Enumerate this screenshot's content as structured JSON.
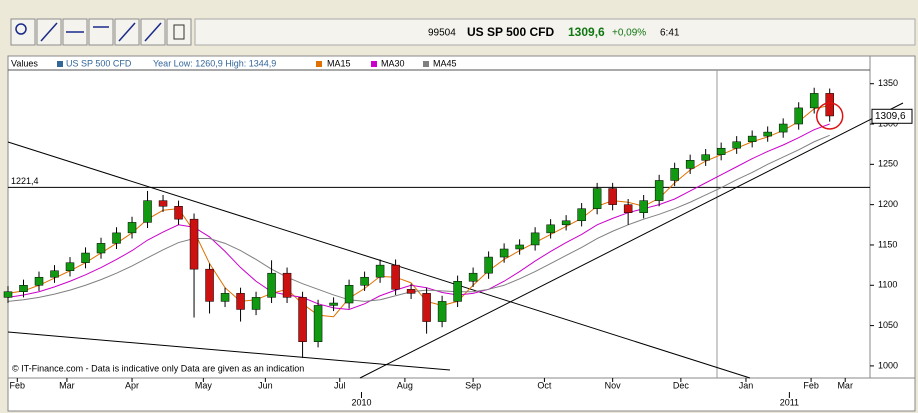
{
  "header": {
    "code": "99504",
    "name": "US SP 500 CFD",
    "price": "1309,6",
    "change": "+0,09%",
    "time": "6:41"
  },
  "chart_data": {
    "type": "candlestick",
    "legend_title": "Values",
    "year_range": "Year Low: 1260,9 High: 1344,9",
    "footer": "© IT-Finance.com - Data is indicative only Data are given as an indication",
    "x": [
      0,
      5,
      10,
      15,
      20,
      25,
      30,
      35,
      40,
      45,
      50,
      55,
      60,
      65,
      70,
      75,
      80,
      85,
      90,
      95,
      100,
      105,
      110,
      115,
      120,
      125,
      130,
      135,
      140,
      145,
      150,
      155,
      160,
      165,
      170,
      175,
      180,
      185,
      190,
      195,
      200,
      205,
      210,
      215,
      220,
      225,
      230,
      235,
      240,
      245,
      250,
      255,
      260,
      265
    ],
    "up_color": "#119911",
    "down_color": "#cc1111",
    "series": [
      {
        "name": "US SP 500 CFD",
        "color": "#336699",
        "open": [
          1085,
          1092,
          1100,
          1110,
          1118,
          1128,
          1140,
          1152,
          1165,
          1178,
          1205,
          1198,
          1182,
          1120,
          1080,
          1090,
          1070,
          1085,
          1115,
          1085,
          1030,
          1075,
          1078,
          1100,
          1110,
          1125,
          1095,
          1090,
          1055,
          1080,
          1105,
          1115,
          1135,
          1145,
          1150,
          1165,
          1175,
          1180,
          1195,
          1220,
          1200,
          1190,
          1205,
          1230,
          1245,
          1255,
          1262,
          1270,
          1278,
          1285,
          1290,
          1300,
          1320,
          1338
        ],
        "high": [
          1099,
          1107,
          1117,
          1125,
          1135,
          1147,
          1159,
          1172,
          1185,
          1217,
          1212,
          1205,
          1189,
          1127,
          1097,
          1097,
          1092,
          1131,
          1122,
          1092,
          1082,
          1085,
          1107,
          1117,
          1132,
          1132,
          1102,
          1097,
          1087,
          1112,
          1122,
          1142,
          1152,
          1157,
          1172,
          1182,
          1187,
          1202,
          1227,
          1227,
          1207,
          1212,
          1237,
          1252,
          1262,
          1269,
          1277,
          1285,
          1292,
          1297,
          1307,
          1327,
          1345,
          1344
        ],
        "low": [
          1078,
          1085,
          1093,
          1103,
          1111,
          1121,
          1133,
          1145,
          1158,
          1171,
          1191,
          1175,
          1060,
          1065,
          1073,
          1055,
          1063,
          1078,
          1078,
          1010,
          1023,
          1068,
          1071,
          1093,
          1103,
          1088,
          1083,
          1040,
          1048,
          1073,
          1098,
          1108,
          1128,
          1138,
          1143,
          1158,
          1168,
          1173,
          1188,
          1193,
          1175,
          1183,
          1198,
          1223,
          1238,
          1248,
          1255,
          1263,
          1271,
          1278,
          1283,
          1293,
          1313,
          1303
        ],
        "close": [
          1092,
          1100,
          1110,
          1118,
          1128,
          1140,
          1152,
          1165,
          1178,
          1205,
          1198,
          1182,
          1120,
          1080,
          1090,
          1070,
          1085,
          1115,
          1085,
          1030,
          1075,
          1078,
          1100,
          1110,
          1125,
          1095,
          1090,
          1055,
          1080,
          1105,
          1115,
          1135,
          1145,
          1150,
          1165,
          1175,
          1180,
          1195,
          1220,
          1200,
          1190,
          1205,
          1230,
          1245,
          1255,
          1262,
          1270,
          1278,
          1285,
          1290,
          1300,
          1320,
          1338,
          1310
        ]
      },
      {
        "name": "MA15",
        "color": "#e07000",
        "values": [
          1090,
          1093,
          1100,
          1109,
          1118,
          1128,
          1140,
          1152,
          1165,
          1182,
          1193,
          1195,
          1167,
          1127,
          1097,
          1080,
          1082,
          1090,
          1095,
          1077,
          1063,
          1061,
          1084,
          1096,
          1111,
          1110,
          1103,
          1080,
          1075,
          1080,
          1100,
          1118,
          1132,
          1143,
          1153,
          1163,
          1173,
          1183,
          1198,
          1205,
          1203,
          1198,
          1208,
          1227,
          1243,
          1254,
          1262,
          1270,
          1278,
          1284,
          1292,
          1303,
          1319,
          1323
        ]
      },
      {
        "name": "MA30",
        "color": "#cc00cc",
        "values": [
          1085,
          1088,
          1092,
          1098,
          1105,
          1113,
          1122,
          1132,
          1143,
          1156,
          1166,
          1175,
          1172,
          1160,
          1142,
          1122,
          1105,
          1092,
          1088,
          1085,
          1077,
          1072,
          1070,
          1077,
          1087,
          1094,
          1100,
          1097,
          1091,
          1088,
          1090,
          1095,
          1105,
          1117,
          1130,
          1142,
          1153,
          1163,
          1175,
          1183,
          1190,
          1195,
          1200,
          1207,
          1217,
          1227,
          1237,
          1247,
          1257,
          1266,
          1274,
          1283,
          1293,
          1300
        ]
      },
      {
        "name": "MA45",
        "color": "#808080",
        "values": [
          1080,
          1082,
          1085,
          1089,
          1094,
          1100,
          1107,
          1115,
          1124,
          1134,
          1144,
          1153,
          1158,
          1158,
          1152,
          1143,
          1132,
          1120,
          1110,
          1102,
          1095,
          1088,
          1082,
          1080,
          1082,
          1087,
          1092,
          1094,
          1093,
          1092,
          1092,
          1095,
          1100,
          1108,
          1117,
          1127,
          1137,
          1147,
          1158,
          1167,
          1175,
          1182,
          1188,
          1195,
          1203,
          1212,
          1221,
          1231,
          1240,
          1250,
          1259,
          1268,
          1278,
          1286
        ]
      }
    ],
    "xlim": [
      0,
      278
    ],
    "ylim": [
      985,
      1367
    ],
    "yticks": [
      1000,
      1050,
      1100,
      1150,
      1200,
      1250,
      1300,
      1350
    ],
    "xticks": [
      {
        "value": 3,
        "label": "Feb"
      },
      {
        "value": 19,
        "label": "Mar"
      },
      {
        "value": 40,
        "label": "Apr"
      },
      {
        "value": 63,
        "label": "May"
      },
      {
        "value": 83,
        "label": "Jun"
      },
      {
        "value": 107,
        "label": "Jul"
      },
      {
        "value": 128,
        "label": "Aug"
      },
      {
        "value": 150,
        "label": "Sep"
      },
      {
        "value": 173,
        "label": "Oct"
      },
      {
        "value": 195,
        "label": "Nov"
      },
      {
        "value": 217,
        "label": "Dec"
      },
      {
        "value": 238,
        "label": "Jan"
      },
      {
        "value": 259,
        "label": "Feb"
      },
      {
        "value": 270,
        "label": "Mar"
      }
    ],
    "year_ticks": [
      {
        "value": 114,
        "label": "2010"
      },
      {
        "value": 252,
        "label": "2011"
      }
    ],
    "hline": {
      "value": 1221.4,
      "label": "1221,4"
    },
    "last": {
      "value": 1309.6,
      "label": "1309,6"
    }
  }
}
